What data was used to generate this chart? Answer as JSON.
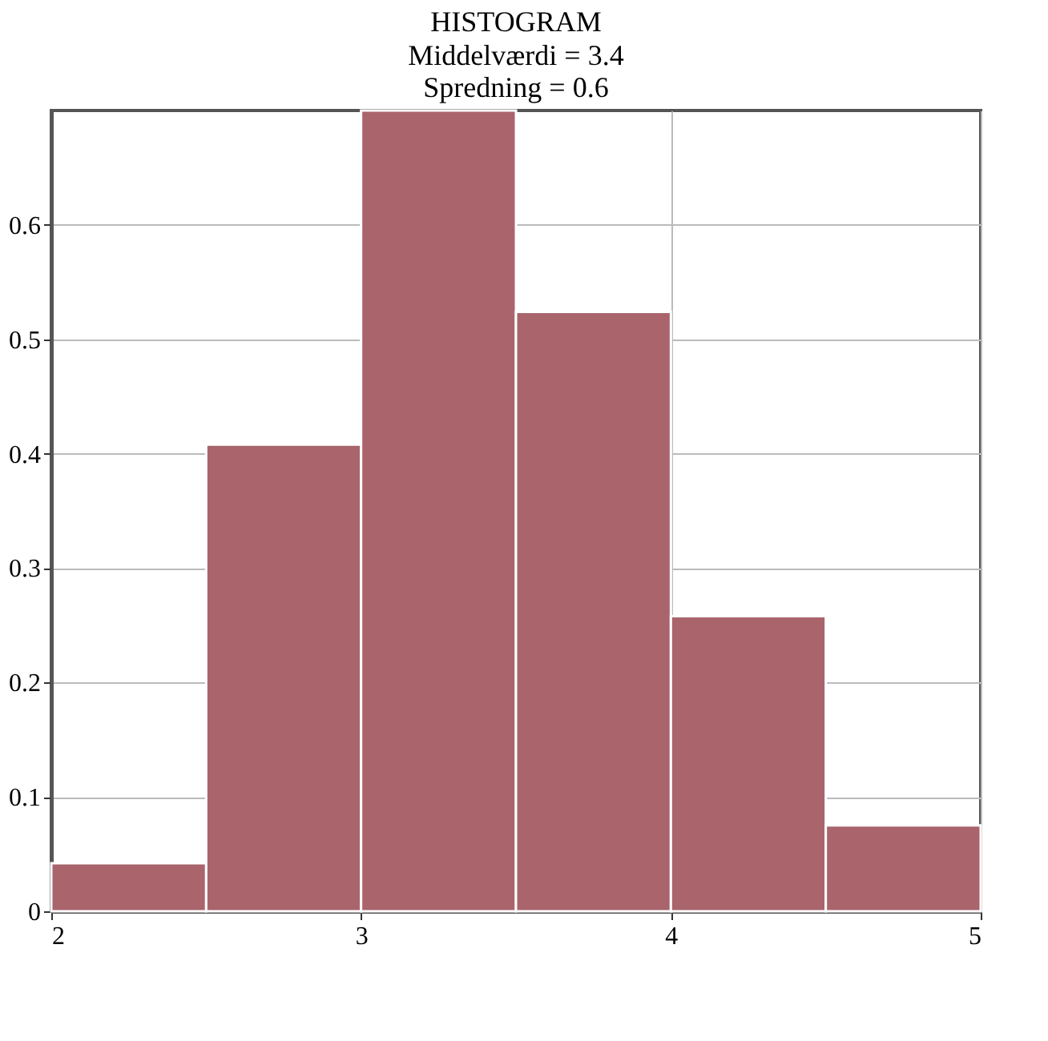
{
  "chart_data": {
    "type": "histogram",
    "title": "HISTOGRAM",
    "subtitle": "Middelværdi = 3.4\nSpredning = 0.6",
    "bins": [
      2,
      2.5,
      3,
      3.5,
      4,
      4.5,
      5
    ],
    "values": [
      0.042,
      0.408,
      0.7,
      0.524,
      0.258,
      0.075
    ],
    "color": "#a9646c",
    "xlim": [
      2,
      5
    ],
    "xticks": [
      2,
      3,
      4,
      5
    ],
    "ylim": [
      0,
      0.7
    ],
    "yticks": [
      0,
      0.1,
      0.2,
      0.3,
      0.4,
      0.5,
      0.6
    ],
    "grid": true
  }
}
